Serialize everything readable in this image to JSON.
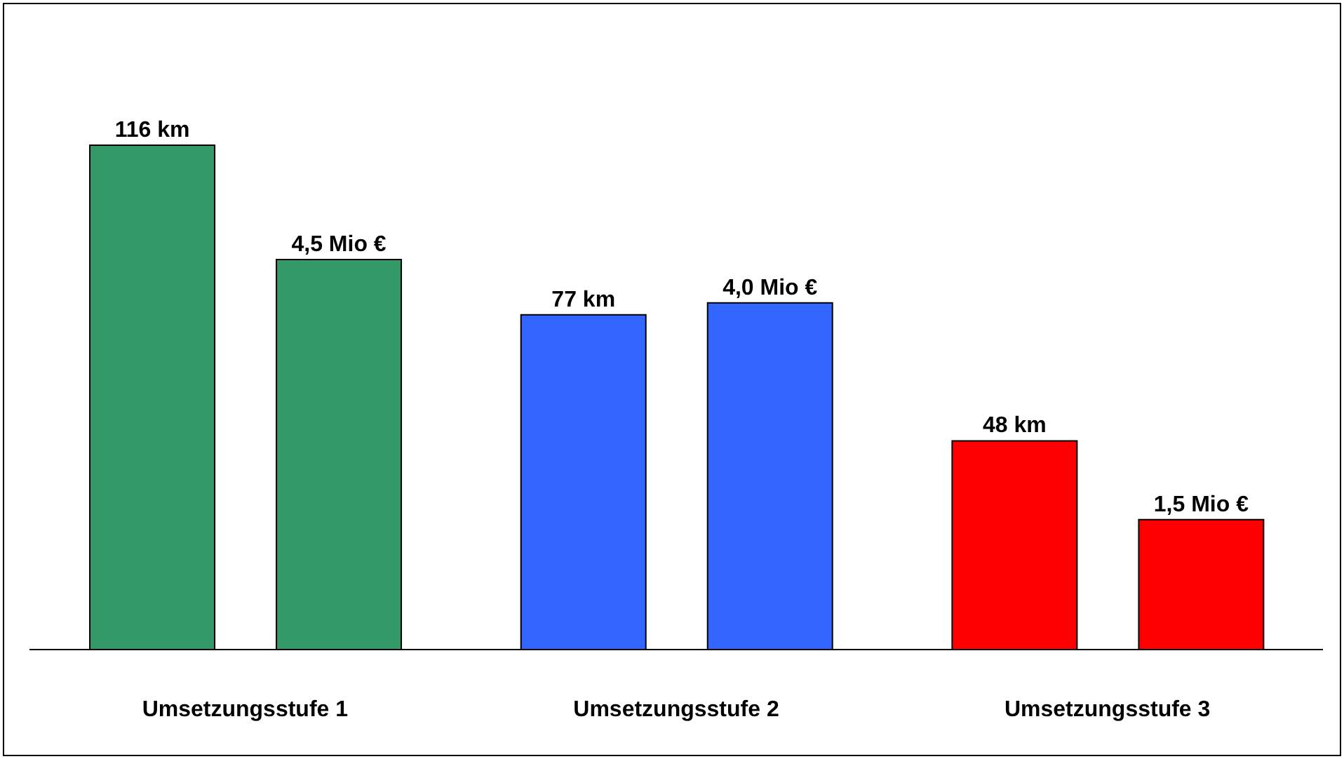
{
  "chart_data": {
    "type": "bar",
    "categories": [
      "Umsetzungsstufe 1",
      "Umsetzungsstufe 2",
      "Umsetzungsstufe 3"
    ],
    "series": [
      {
        "colors": [
          "#339966",
          "#3366ff",
          "#ff0000"
        ],
        "values": [
          116,
          77,
          48
        ],
        "value_labels": [
          "116 km",
          "77 km",
          "48 km"
        ],
        "axis": "y"
      },
      {
        "colors": [
          "#339966",
          "#3366ff",
          "#ff0000"
        ],
        "values": [
          4.5,
          4.0,
          1.5
        ],
        "value_labels": [
          "4,5 Mio €",
          "4,0 Mio €",
          "1,5 Mio €"
        ],
        "axis": "y2"
      }
    ],
    "tick_labels": "x"
  }
}
